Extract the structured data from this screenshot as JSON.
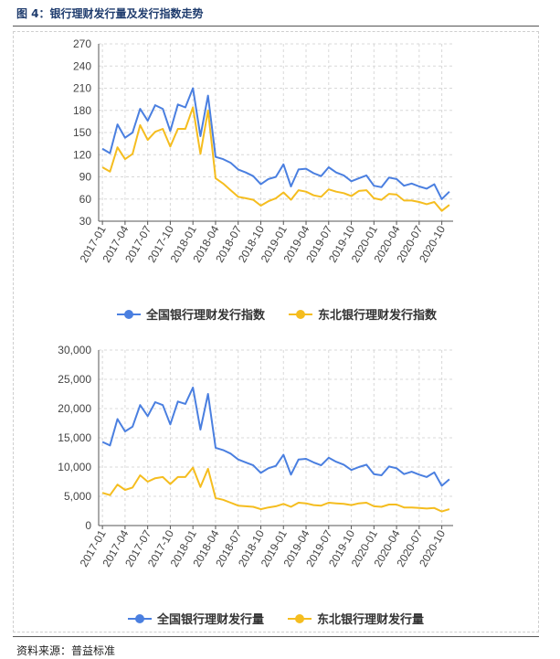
{
  "figure_title": "图 4：银行理财发行量及发行指数走势",
  "source_note": "资料来源：普益标准",
  "colors": {
    "national": "#4a7fe0",
    "northeast": "#f5bd1f",
    "grid": "#d8d8d8",
    "axis": "#555555"
  },
  "chart_data": [
    {
      "type": "line",
      "title": "",
      "xlabel": "",
      "ylabel": "",
      "ylim": [
        30,
        270
      ],
      "yticks": [
        30,
        60,
        90,
        120,
        150,
        180,
        210,
        240,
        270
      ],
      "ytick_labels": [
        "30",
        "60",
        "90",
        "120",
        "150",
        "180",
        "210",
        "240",
        "270"
      ],
      "xtick_labels": [
        "2017-01",
        "2017-04",
        "2017-07",
        "2017-10",
        "2018-01",
        "2018-04",
        "2018-07",
        "2018-10",
        "2019-01",
        "2019-04",
        "2019-07",
        "2019-10",
        "2020-01",
        "2020-04",
        "2020-07",
        "2020-10"
      ],
      "legend_position": "bottom-center",
      "series": [
        {
          "name": "全国银行理财发行指数",
          "color": "#4a7fe0",
          "values": [
            128,
            122,
            161,
            143,
            150,
            182,
            166,
            187,
            182,
            152,
            188,
            184,
            210,
            145,
            200,
            117,
            114,
            109,
            100,
            96,
            91,
            80,
            87,
            90,
            107,
            77,
            100,
            101,
            95,
            91,
            103,
            96,
            92,
            84,
            88,
            92,
            78,
            76,
            89,
            87,
            78,
            81,
            77,
            74,
            80,
            60,
            70
          ]
        },
        {
          "name": "东北银行理财发行指数",
          "color": "#f5bd1f",
          "values": [
            103,
            97,
            130,
            114,
            121,
            160,
            140,
            151,
            155,
            131,
            155,
            155,
            184,
            121,
            180,
            88,
            81,
            72,
            63,
            61,
            59,
            51,
            57,
            61,
            69,
            59,
            72,
            70,
            65,
            63,
            73,
            70,
            68,
            64,
            71,
            72,
            61,
            59,
            67,
            66,
            58,
            58,
            56,
            53,
            56,
            44,
            52
          ]
        }
      ]
    },
    {
      "type": "line",
      "title": "",
      "xlabel": "",
      "ylabel": "",
      "ylim": [
        0,
        30000
      ],
      "yticks": [
        0,
        5000,
        10000,
        15000,
        20000,
        25000,
        30000
      ],
      "ytick_labels": [
        "0",
        "5,000",
        "10,000",
        "15,000",
        "20,000",
        "25,000",
        "30,000"
      ],
      "xtick_labels": [
        "2017-01",
        "2017-04",
        "2017-07",
        "2017-10",
        "2018-01",
        "2018-04",
        "2018-07",
        "2018-10",
        "2019-01",
        "2019-04",
        "2019-07",
        "2019-10",
        "2020-01",
        "2020-04",
        "2020-07",
        "2020-10"
      ],
      "legend_position": "bottom-center",
      "series": [
        {
          "name": "全国银行理财发行量",
          "color": "#4a7fe0",
          "values": [
            14300,
            13700,
            18200,
            16100,
            16900,
            20600,
            18700,
            21100,
            20600,
            17300,
            21200,
            20800,
            23600,
            16400,
            22500,
            13300,
            12900,
            12300,
            11300,
            10800,
            10300,
            9000,
            9800,
            10200,
            12100,
            8700,
            11300,
            11400,
            10800,
            10300,
            11600,
            10900,
            10400,
            9500,
            10000,
            10400,
            8800,
            8600,
            10100,
            9800,
            8800,
            9200,
            8700,
            8300,
            9100,
            6800,
            7900
          ]
        },
        {
          "name": "东北银行理财发行量",
          "color": "#f5bd1f",
          "values": [
            5600,
            5200,
            7000,
            6100,
            6500,
            8600,
            7500,
            8100,
            8300,
            7100,
            8300,
            8300,
            9900,
            6600,
            9700,
            4700,
            4400,
            3900,
            3400,
            3300,
            3200,
            2800,
            3100,
            3300,
            3700,
            3200,
            3900,
            3800,
            3500,
            3400,
            3900,
            3800,
            3700,
            3500,
            3800,
            3900,
            3300,
            3200,
            3600,
            3600,
            3100,
            3100,
            3000,
            2900,
            3000,
            2400,
            2800
          ]
        }
      ]
    }
  ]
}
